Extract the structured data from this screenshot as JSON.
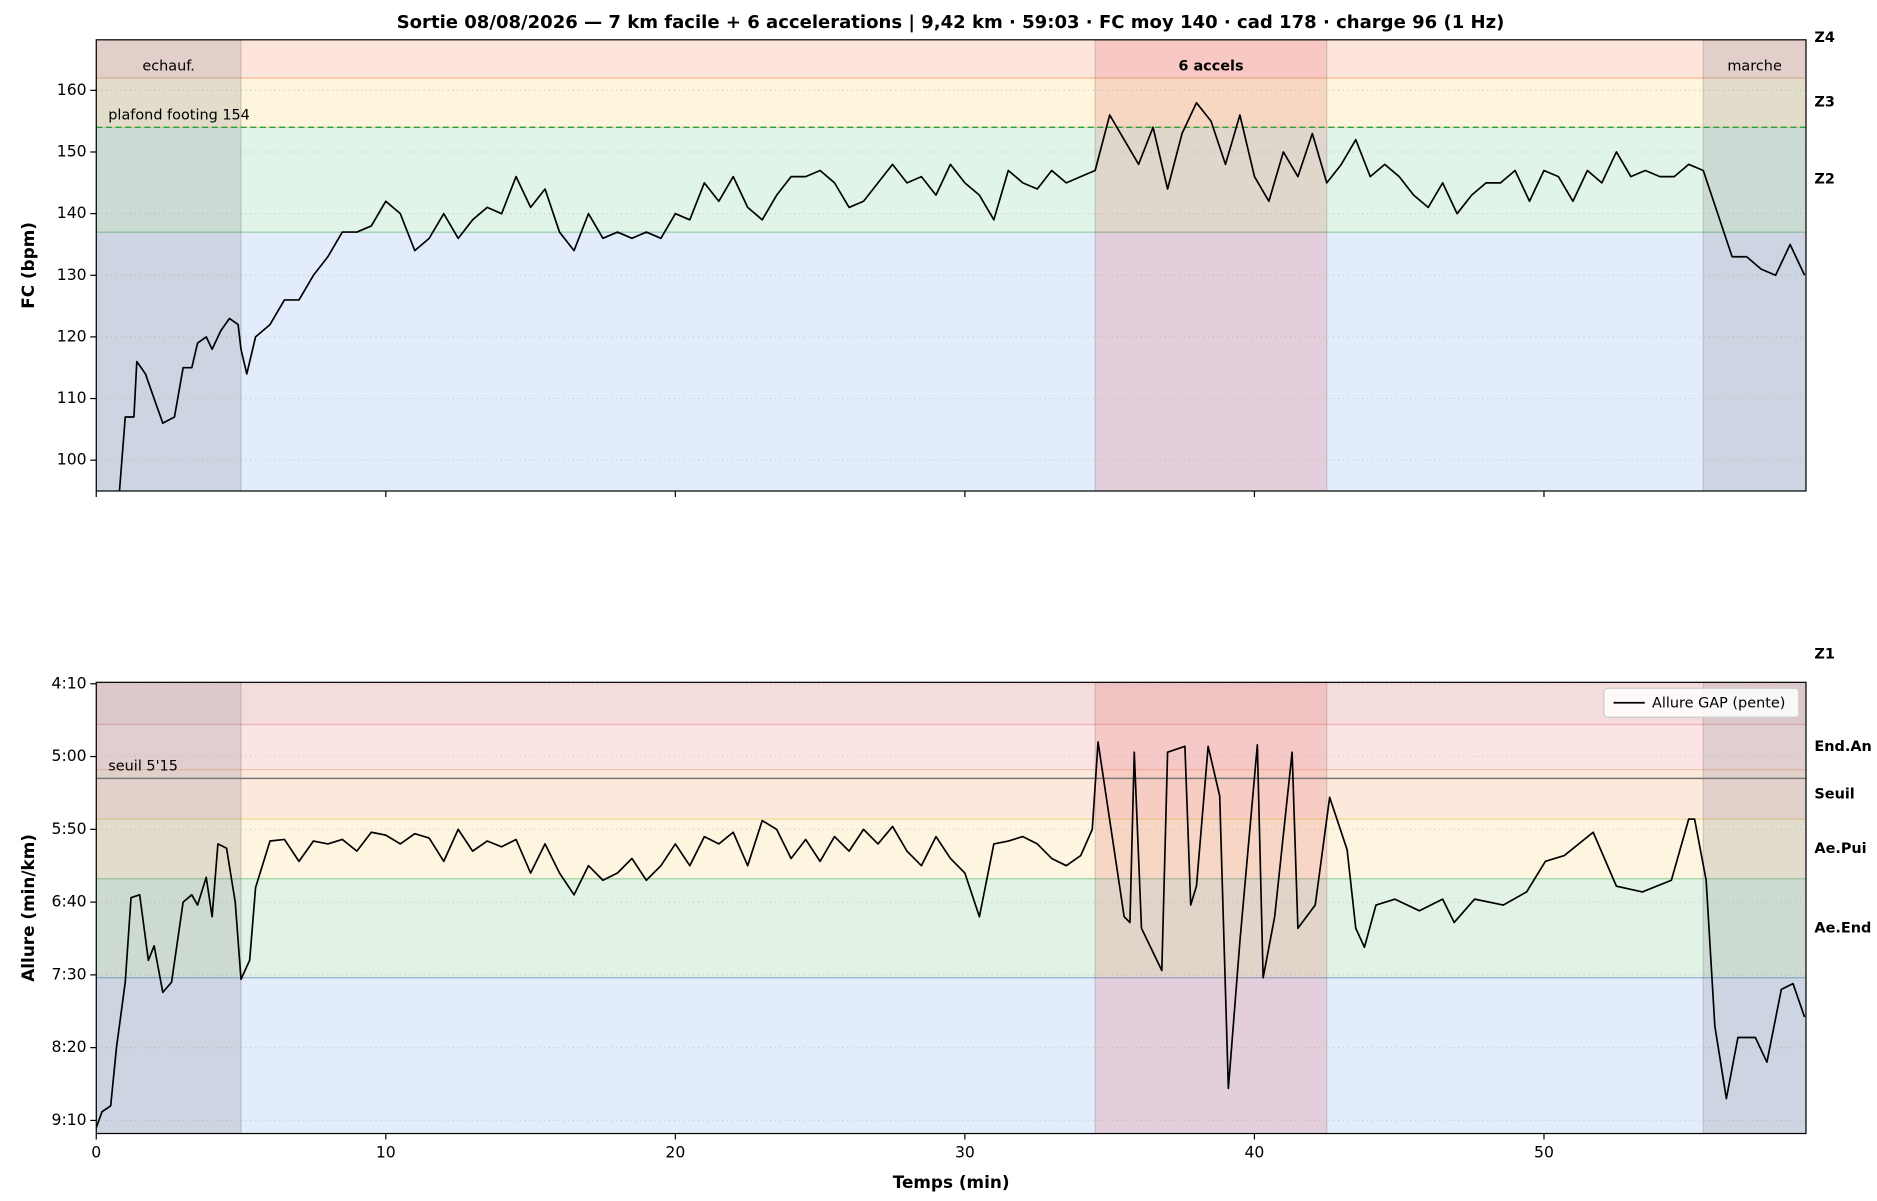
{
  "title": "Sortie 08/08/2026 — 7 km facile + 6 accelerations  |  9,42 km · 59:03 · FC moy 140 · cad 178 · charge 96   (1 Hz)",
  "chart_data": [
    {
      "type": "line",
      "ylabel": "FC (bpm)",
      "xlim": [
        0,
        59.05
      ],
      "ylim": [
        95,
        168.2
      ],
      "xticks": [
        0,
        10,
        20,
        30,
        40,
        50
      ],
      "xtick_labels": false,
      "yticks": [
        100,
        110,
        120,
        130,
        140,
        150,
        160
      ],
      "grid": true,
      "zones": [
        {
          "label": "Z1",
          "lo": 0,
          "hi": 137,
          "color": "#e3ecfa",
          "edge": "#8fb0dd",
          "label_color": "#3a7be0"
        },
        {
          "label": "Z2",
          "lo": 137,
          "hi": 154,
          "color": "#e0f4e8",
          "edge": "#9ad3ab",
          "label_color": "#22b14c"
        },
        {
          "label": "Z3",
          "lo": 154,
          "hi": 162,
          "color": "#fdf5dc",
          "edge": "#f0d990",
          "label_color": "#e0b000"
        },
        {
          "label": "Z4",
          "lo": 162,
          "hi": 175,
          "color": "#fde5dc",
          "edge": "#f5b99a",
          "label_color": "#f07c1e"
        }
      ],
      "regions": [
        {
          "label": "echauf.",
          "start": 0,
          "end": 5,
          "color": "rgba(120,120,130,0.2)",
          "label_color": "#555"
        },
        {
          "label": "6 accels",
          "start": 34.5,
          "end": 42.5,
          "color": "rgba(220,80,80,0.18)",
          "label_color": "#b0141e"
        },
        {
          "label": "marche",
          "start": 55.5,
          "end": 59.05,
          "color": "rgba(120,120,130,0.2)",
          "label_color": "#555"
        }
      ],
      "threshold": {
        "value": 154,
        "label": "plafond footing 154",
        "color": "#2a9d48",
        "dash": true
      },
      "x": [
        0.8,
        1,
        1.3,
        1.4,
        1.7,
        2,
        2.3,
        2.7,
        3,
        3.3,
        3.5,
        3.8,
        4,
        4.3,
        4.6,
        4.9,
        5,
        5.2,
        5.5,
        6,
        6.5,
        7,
        7.5,
        8,
        8.5,
        9,
        9.5,
        10,
        10.5,
        11,
        11.5,
        12,
        12.5,
        13,
        13.5,
        14,
        14.5,
        15,
        15.5,
        16,
        16.5,
        17,
        17.5,
        18,
        18.5,
        19,
        19.5,
        20,
        20.5,
        21,
        21.5,
        22,
        22.5,
        23,
        23.5,
        24,
        24.5,
        25,
        25.5,
        26,
        26.5,
        27,
        27.5,
        28,
        28.5,
        29,
        29.5,
        30,
        30.5,
        31,
        31.5,
        32,
        32.5,
        33,
        33.5,
        34,
        34.5,
        35,
        35.5,
        36,
        36.5,
        37,
        37.5,
        38,
        38.5,
        39,
        39.5,
        40,
        40.5,
        41,
        41.5,
        42,
        42.5,
        43,
        43.5,
        44,
        44.5,
        45,
        45.5,
        46,
        46.5,
        47,
        47.5,
        48,
        48.5,
        49,
        49.5,
        50,
        50.5,
        51,
        51.5,
        52,
        52.5,
        53,
        53.5,
        54,
        54.5,
        55,
        55.5,
        56,
        56.5,
        57,
        57.5,
        58,
        58.5,
        59
      ],
      "series": [
        {
          "color": "#000000",
          "values": [
            95,
            107,
            107,
            116,
            114,
            110,
            106,
            107,
            115,
            115,
            119,
            120,
            118,
            121,
            123,
            122,
            118,
            114,
            120,
            122,
            126,
            126,
            130,
            133,
            137,
            137,
            138,
            142,
            140,
            134,
            136,
            140,
            136,
            139,
            141,
            140,
            146,
            141,
            144,
            137,
            134,
            140,
            136,
            137,
            136,
            137,
            136,
            140,
            139,
            145,
            142,
            146,
            141,
            139,
            143,
            146,
            146,
            147,
            145,
            141,
            142,
            145,
            148,
            145,
            146,
            143,
            148,
            145,
            143,
            139,
            147,
            145,
            144,
            147,
            145,
            146,
            147,
            156,
            152,
            148,
            154,
            144,
            153,
            158,
            155,
            148,
            156,
            146,
            142,
            150,
            146,
            153,
            145,
            148,
            152,
            146,
            148,
            146,
            143,
            141,
            145,
            140,
            143,
            145,
            145,
            147,
            142,
            147,
            146,
            142,
            147,
            145,
            150,
            146,
            147,
            146,
            146,
            148,
            147,
            140,
            133,
            133,
            131,
            130,
            135,
            130
          ]
        }
      ]
    },
    {
      "type": "line",
      "ylabel": "Allure (min/km)",
      "xlabel": "Temps (min)",
      "xlim": [
        0,
        59.05
      ],
      "ylim": [
        559,
        249
      ],
      "xticks": [
        0,
        10,
        20,
        30,
        40,
        50
      ],
      "yticks": [
        {
          "value": 250,
          "label": "4:10"
        },
        {
          "value": 300,
          "label": "5:00"
        },
        {
          "value": 350,
          "label": "5:50"
        },
        {
          "value": 400,
          "label": "6:40"
        },
        {
          "value": 450,
          "label": "7:30"
        },
        {
          "value": 500,
          "label": "8:20"
        },
        {
          "value": 550,
          "label": "9:10"
        }
      ],
      "grid": true,
      "legend": "upper right",
      "zones": [
        {
          "lo": 240,
          "hi": 278,
          "color": "#f5dcdc",
          "edge": "#e8a8a8"
        },
        {
          "label": "End.An",
          "lo": 278,
          "hi": 309,
          "color": "#fce4e4",
          "edge": "#eeb0b0",
          "label_color": "#e84040"
        },
        {
          "label": "Seuil",
          "lo": 309,
          "hi": 343,
          "color": "#fde8dc",
          "edge": "#f3c6a8",
          "label_color": "#f07c1e"
        },
        {
          "label": "Ae.Pui",
          "lo": 343,
          "hi": 384,
          "color": "#fdf5e0",
          "edge": "#f0d990",
          "label_color": "#e0b000"
        },
        {
          "label": "Ae.End",
          "lo": 384,
          "hi": 452,
          "color": "#e2f3e6",
          "edge": "#9ad3ab",
          "label_color": "#22b14c"
        },
        {
          "lo": 452,
          "hi": 600,
          "color": "#e3ecfa",
          "edge": "#8fb0dd"
        }
      ],
      "regions": [
        {
          "start": 0,
          "end": 5,
          "color": "rgba(120,120,130,0.2)"
        },
        {
          "start": 34.5,
          "end": 42.5,
          "color": "rgba(220,80,80,0.18)"
        },
        {
          "start": 55.5,
          "end": 59.05,
          "color": "rgba(120,120,130,0.2)"
        }
      ],
      "threshold": {
        "value": 315,
        "label": "seuil 5'15",
        "color": "#777777",
        "dash": false
      },
      "x": [
        0,
        0.2,
        0.5,
        0.7,
        1,
        1.2,
        1.5,
        1.8,
        2,
        2.3,
        2.6,
        3,
        3.3,
        3.5,
        3.8,
        4,
        4.2,
        4.5,
        4.8,
        5,
        5.3,
        5.5,
        6,
        6.5,
        7,
        7.5,
        8,
        8.5,
        9,
        9.5,
        10,
        10.5,
        11,
        11.5,
        12,
        12.5,
        13,
        13.5,
        14,
        14.5,
        15,
        15.5,
        16,
        16.5,
        17,
        17.5,
        18,
        18.5,
        19,
        19.5,
        20,
        20.5,
        21,
        21.5,
        22,
        22.5,
        23,
        23.5,
        24,
        24.5,
        25,
        25.5,
        26,
        26.5,
        27,
        27.5,
        28,
        28.5,
        29,
        29.5,
        30,
        30.5,
        31,
        31.5,
        32,
        32.5,
        33,
        33.5,
        34,
        34.4,
        34.6,
        35.5,
        35.7,
        35.85,
        36.1,
        36.8,
        37,
        37.6,
        37.8,
        38,
        38.4,
        38.8,
        39.1,
        39.5,
        40.1,
        40.3,
        40.7,
        41.3,
        41.5,
        42.1,
        42.6,
        43.2,
        43.5,
        43.8,
        44.2,
        44.85,
        45.7,
        46.5,
        46.9,
        47.6,
        48.6,
        49.4,
        50.05,
        50.7,
        51.7,
        52.5,
        53.4,
        54.4,
        55,
        55.2,
        55.6,
        55.9,
        56.3,
        56.7,
        57.3,
        57.7,
        58.2,
        58.6,
        59
      ],
      "series": [
        {
          "name": "Allure GAP (pente)",
          "color": "#000000",
          "values": [
            555,
            544,
            540,
            500,
            455,
            397,
            395,
            440,
            430,
            462,
            455,
            400,
            395,
            402,
            383,
            410,
            360,
            363,
            400,
            453,
            440,
            390,
            358,
            357,
            372,
            358,
            360,
            357,
            365,
            352,
            354,
            360,
            353,
            356,
            372,
            350,
            365,
            358,
            362,
            357,
            380,
            360,
            380,
            395,
            375,
            385,
            380,
            370,
            385,
            375,
            360,
            375,
            355,
            360,
            352,
            375,
            344,
            350,
            370,
            357,
            372,
            355,
            365,
            350,
            360,
            348,
            365,
            375,
            355,
            370,
            380,
            410,
            360,
            358,
            355,
            360,
            370,
            375,
            368,
            350,
            290,
            410,
            414,
            297,
            418,
            447,
            297,
            293,
            402,
            389,
            293,
            327,
            528,
            427,
            292,
            452,
            410,
            297,
            418,
            402,
            328,
            364,
            418,
            431,
            402,
            398,
            406,
            398,
            414,
            398,
            402,
            393,
            372,
            368,
            352,
            389,
            393,
            385,
            343,
            343,
            385,
            485,
            535,
            493,
            493,
            510,
            460,
            456,
            479
          ]
        }
      ]
    }
  ]
}
